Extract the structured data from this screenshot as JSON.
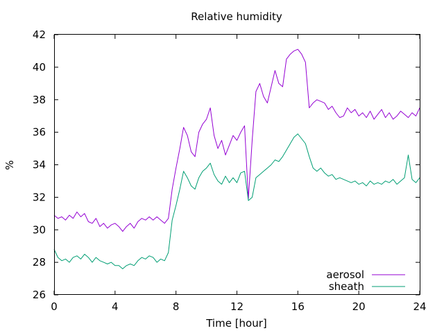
{
  "chart_data": {
    "type": "line",
    "title": "Relative humidity",
    "xlabel": "Time [hour]",
    "ylabel": "%",
    "xlim": [
      0,
      24
    ],
    "ylim": [
      26,
      42
    ],
    "xticks": [
      0,
      4,
      8,
      12,
      16,
      20,
      24
    ],
    "yticks": [
      26,
      28,
      30,
      32,
      34,
      36,
      38,
      40,
      42
    ],
    "grid": false,
    "legend_position": "bottom-right",
    "series": [
      {
        "name": "aerosol",
        "color": "#9400d3",
        "points": [
          [
            0.0,
            30.9
          ],
          [
            0.25,
            30.7
          ],
          [
            0.5,
            30.8
          ],
          [
            0.75,
            30.6
          ],
          [
            1.0,
            30.9
          ],
          [
            1.25,
            30.7
          ],
          [
            1.5,
            31.1
          ],
          [
            1.75,
            30.8
          ],
          [
            2.0,
            31.0
          ],
          [
            2.25,
            30.5
          ],
          [
            2.5,
            30.4
          ],
          [
            2.75,
            30.7
          ],
          [
            3.0,
            30.2
          ],
          [
            3.25,
            30.4
          ],
          [
            3.5,
            30.1
          ],
          [
            3.75,
            30.3
          ],
          [
            4.0,
            30.4
          ],
          [
            4.25,
            30.2
          ],
          [
            4.5,
            29.9
          ],
          [
            4.75,
            30.2
          ],
          [
            5.0,
            30.4
          ],
          [
            5.25,
            30.1
          ],
          [
            5.5,
            30.5
          ],
          [
            5.75,
            30.7
          ],
          [
            6.0,
            30.6
          ],
          [
            6.25,
            30.8
          ],
          [
            6.5,
            30.6
          ],
          [
            6.75,
            30.8
          ],
          [
            7.0,
            30.6
          ],
          [
            7.25,
            30.4
          ],
          [
            7.5,
            30.7
          ],
          [
            7.75,
            32.5
          ],
          [
            8.0,
            33.8
          ],
          [
            8.25,
            35.0
          ],
          [
            8.5,
            36.3
          ],
          [
            8.75,
            35.8
          ],
          [
            9.0,
            34.8
          ],
          [
            9.25,
            34.5
          ],
          [
            9.5,
            36.0
          ],
          [
            9.75,
            36.5
          ],
          [
            10.0,
            36.8
          ],
          [
            10.25,
            37.5
          ],
          [
            10.5,
            35.8
          ],
          [
            10.75,
            35.0
          ],
          [
            11.0,
            35.5
          ],
          [
            11.25,
            34.6
          ],
          [
            11.5,
            35.2
          ],
          [
            11.75,
            35.8
          ],
          [
            12.0,
            35.5
          ],
          [
            12.25,
            36.0
          ],
          [
            12.5,
            36.4
          ],
          [
            12.75,
            31.9
          ],
          [
            13.0,
            35.5
          ],
          [
            13.25,
            38.5
          ],
          [
            13.5,
            39.0
          ],
          [
            13.75,
            38.2
          ],
          [
            14.0,
            37.8
          ],
          [
            14.25,
            38.8
          ],
          [
            14.5,
            39.8
          ],
          [
            14.75,
            39.0
          ],
          [
            15.0,
            38.8
          ],
          [
            15.25,
            40.5
          ],
          [
            15.5,
            40.8
          ],
          [
            15.75,
            41.0
          ],
          [
            16.0,
            41.1
          ],
          [
            16.25,
            40.8
          ],
          [
            16.5,
            40.3
          ],
          [
            16.75,
            37.5
          ],
          [
            17.0,
            37.8
          ],
          [
            17.25,
            38.0
          ],
          [
            17.5,
            37.9
          ],
          [
            17.75,
            37.8
          ],
          [
            18.0,
            37.4
          ],
          [
            18.25,
            37.6
          ],
          [
            18.5,
            37.2
          ],
          [
            18.75,
            36.9
          ],
          [
            19.0,
            37.0
          ],
          [
            19.25,
            37.5
          ],
          [
            19.5,
            37.2
          ],
          [
            19.75,
            37.4
          ],
          [
            20.0,
            37.0
          ],
          [
            20.25,
            37.2
          ],
          [
            20.5,
            36.9
          ],
          [
            20.75,
            37.3
          ],
          [
            21.0,
            36.8
          ],
          [
            21.25,
            37.1
          ],
          [
            21.5,
            37.4
          ],
          [
            21.75,
            36.9
          ],
          [
            22.0,
            37.2
          ],
          [
            22.25,
            36.8
          ],
          [
            22.5,
            37.0
          ],
          [
            22.75,
            37.3
          ],
          [
            23.0,
            37.1
          ],
          [
            23.25,
            36.9
          ],
          [
            23.5,
            37.2
          ],
          [
            23.75,
            37.0
          ],
          [
            24.0,
            37.5
          ]
        ]
      },
      {
        "name": "sheath",
        "color": "#009e73",
        "points": [
          [
            0.0,
            28.8
          ],
          [
            0.25,
            28.3
          ],
          [
            0.5,
            28.1
          ],
          [
            0.75,
            28.2
          ],
          [
            1.0,
            28.0
          ],
          [
            1.25,
            28.3
          ],
          [
            1.5,
            28.4
          ],
          [
            1.75,
            28.2
          ],
          [
            2.0,
            28.5
          ],
          [
            2.25,
            28.3
          ],
          [
            2.5,
            28.0
          ],
          [
            2.75,
            28.3
          ],
          [
            3.0,
            28.1
          ],
          [
            3.25,
            28.0
          ],
          [
            3.5,
            27.9
          ],
          [
            3.75,
            28.0
          ],
          [
            4.0,
            27.8
          ],
          [
            4.25,
            27.8
          ],
          [
            4.5,
            27.6
          ],
          [
            4.75,
            27.8
          ],
          [
            5.0,
            27.9
          ],
          [
            5.25,
            27.8
          ],
          [
            5.5,
            28.1
          ],
          [
            5.75,
            28.3
          ],
          [
            6.0,
            28.2
          ],
          [
            6.25,
            28.4
          ],
          [
            6.5,
            28.3
          ],
          [
            6.75,
            28.0
          ],
          [
            7.0,
            28.2
          ],
          [
            7.25,
            28.1
          ],
          [
            7.5,
            28.6
          ],
          [
            7.75,
            30.6
          ],
          [
            8.0,
            31.5
          ],
          [
            8.25,
            32.5
          ],
          [
            8.5,
            33.6
          ],
          [
            8.75,
            33.2
          ],
          [
            9.0,
            32.7
          ],
          [
            9.25,
            32.5
          ],
          [
            9.5,
            33.2
          ],
          [
            9.75,
            33.6
          ],
          [
            10.0,
            33.8
          ],
          [
            10.25,
            34.1
          ],
          [
            10.5,
            33.4
          ],
          [
            10.75,
            33.0
          ],
          [
            11.0,
            32.8
          ],
          [
            11.25,
            33.3
          ],
          [
            11.5,
            32.9
          ],
          [
            11.75,
            33.2
          ],
          [
            12.0,
            32.9
          ],
          [
            12.25,
            33.5
          ],
          [
            12.5,
            33.6
          ],
          [
            12.75,
            31.8
          ],
          [
            13.0,
            32.0
          ],
          [
            13.25,
            33.2
          ],
          [
            13.5,
            33.4
          ],
          [
            13.75,
            33.6
          ],
          [
            14.0,
            33.8
          ],
          [
            14.25,
            34.0
          ],
          [
            14.5,
            34.3
          ],
          [
            14.75,
            34.2
          ],
          [
            15.0,
            34.5
          ],
          [
            15.25,
            34.9
          ],
          [
            15.5,
            35.3
          ],
          [
            15.75,
            35.7
          ],
          [
            16.0,
            35.9
          ],
          [
            16.25,
            35.6
          ],
          [
            16.5,
            35.3
          ],
          [
            16.75,
            34.5
          ],
          [
            17.0,
            33.8
          ],
          [
            17.25,
            33.6
          ],
          [
            17.5,
            33.8
          ],
          [
            17.75,
            33.5
          ],
          [
            18.0,
            33.3
          ],
          [
            18.25,
            33.4
          ],
          [
            18.5,
            33.1
          ],
          [
            18.75,
            33.2
          ],
          [
            19.0,
            33.1
          ],
          [
            19.25,
            33.0
          ],
          [
            19.5,
            32.9
          ],
          [
            19.75,
            33.0
          ],
          [
            20.0,
            32.8
          ],
          [
            20.25,
            32.9
          ],
          [
            20.5,
            32.7
          ],
          [
            20.75,
            33.0
          ],
          [
            21.0,
            32.8
          ],
          [
            21.25,
            32.9
          ],
          [
            21.5,
            32.8
          ],
          [
            21.75,
            33.0
          ],
          [
            22.0,
            32.9
          ],
          [
            22.25,
            33.1
          ],
          [
            22.5,
            32.8
          ],
          [
            22.75,
            33.0
          ],
          [
            23.0,
            33.2
          ],
          [
            23.25,
            34.6
          ],
          [
            23.5,
            33.1
          ],
          [
            23.75,
            32.9
          ],
          [
            24.0,
            33.2
          ]
        ]
      }
    ]
  }
}
